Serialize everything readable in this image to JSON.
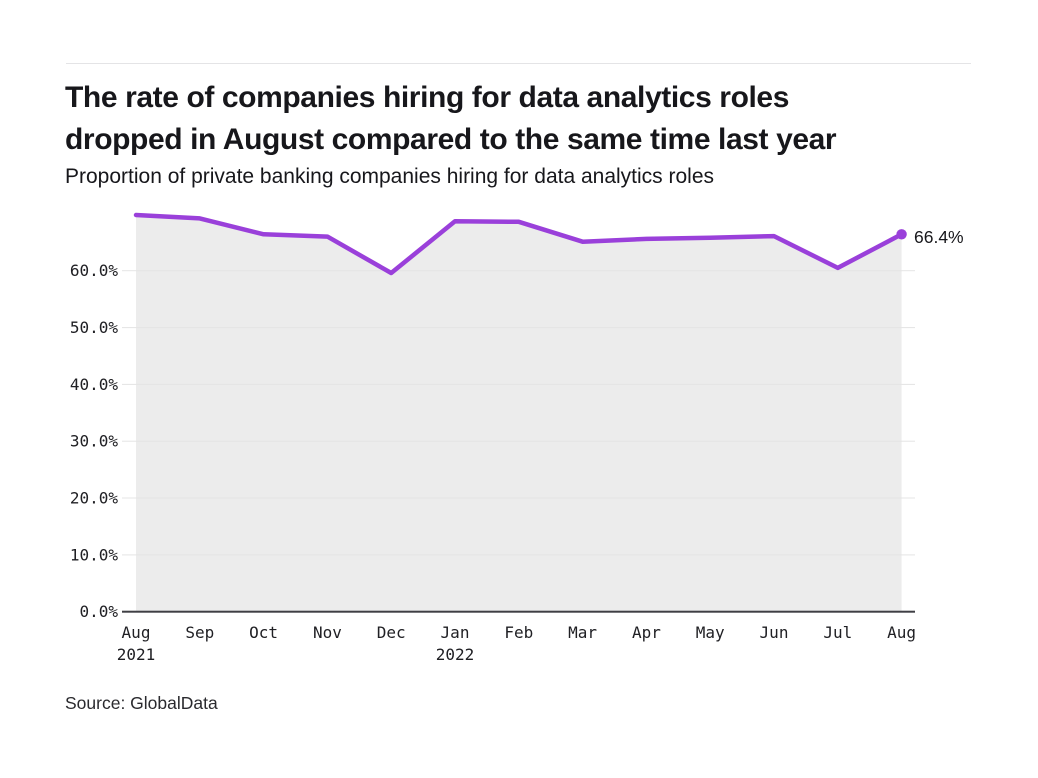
{
  "chart_data": {
    "type": "line",
    "title_lines": [
      "The rate of companies hiring for data analytics roles",
      "dropped in August compared to the same time last year"
    ],
    "title": "The rate of companies hiring for data analytics roles dropped in August compared to the same time last year",
    "subtitle": "Proportion of private banking companies hiring for data analytics roles",
    "source": "Source: GlobalData",
    "categories": [
      "Aug 2021",
      "Sep",
      "Oct",
      "Nov",
      "Dec",
      "Jan 2022",
      "Feb",
      "Mar",
      "Apr",
      "May",
      "Jun",
      "Jul",
      "Aug"
    ],
    "x_ticks": [
      {
        "month": "Aug",
        "year": "2021"
      },
      {
        "month": "Sep"
      },
      {
        "month": "Oct"
      },
      {
        "month": "Nov"
      },
      {
        "month": "Dec"
      },
      {
        "month": "Jan",
        "year": "2022"
      },
      {
        "month": "Feb"
      },
      {
        "month": "Mar"
      },
      {
        "month": "Apr"
      },
      {
        "month": "May"
      },
      {
        "month": "Jun"
      },
      {
        "month": "Jul"
      },
      {
        "month": "Aug"
      }
    ],
    "series": [
      {
        "name": "Proportion of private banking companies hiring for data analytics roles",
        "values": [
          69.8,
          69.2,
          66.4,
          66.0,
          59.6,
          68.7,
          68.6,
          65.1,
          65.6,
          65.8,
          66.1,
          60.5,
          66.4
        ]
      }
    ],
    "end_label": "66.4%",
    "y_ticks": [
      {
        "value": 0,
        "label": "0.0%"
      },
      {
        "value": 10,
        "label": "10.0%"
      },
      {
        "value": 20,
        "label": "20.0%"
      },
      {
        "value": 30,
        "label": "30.0%"
      },
      {
        "value": 40,
        "label": "40.0%"
      },
      {
        "value": 50,
        "label": "50.0%"
      },
      {
        "value": 60,
        "label": "60.0%"
      }
    ],
    "ylim": [
      0,
      70.5
    ],
    "grid": "horizontal",
    "legend_position": "none",
    "colors": {
      "line": "#9a40da",
      "area_fill": "#ececec",
      "grid": "#e4e4e4",
      "axis": "#3f3f44",
      "text": "#17171b"
    }
  }
}
